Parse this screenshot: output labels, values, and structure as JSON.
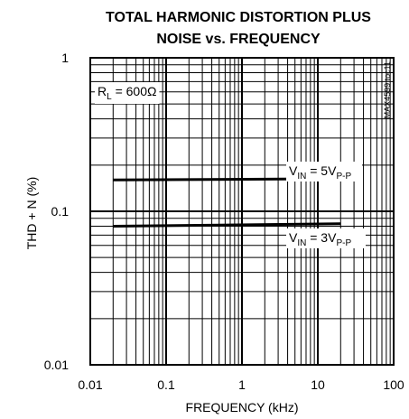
{
  "chart_data": {
    "type": "line",
    "title": "TOTAL HARMONIC DISTORTION PLUS",
    "subtitle": "NOISE vs. FREQUENCY",
    "xlabel": "FREQUENCY (kHz)",
    "ylabel": "THD + N (%)",
    "x_scale": "log",
    "y_scale": "log",
    "xlim": [
      0.01,
      100
    ],
    "ylim": [
      0.01,
      1
    ],
    "grid": true,
    "x_ticks": [
      {
        "value": 0.01,
        "label": "0.01"
      },
      {
        "value": 0.1,
        "label": "0.1"
      },
      {
        "value": 1,
        "label": "1"
      },
      {
        "value": 10,
        "label": "10"
      },
      {
        "value": 100,
        "label": "100"
      }
    ],
    "y_ticks": [
      {
        "value": 0.01,
        "label": "0.01"
      },
      {
        "value": 0.1,
        "label": "0.1"
      },
      {
        "value": 1,
        "label": "1"
      }
    ],
    "series": [
      {
        "label_main": "V",
        "label_sub": "IN",
        "label_mid": " = 5V",
        "label_sub2": "P-P",
        "x": [
          0.02,
          20
        ],
        "y": [
          0.16,
          0.163
        ]
      },
      {
        "label_main": "V",
        "label_sub": "IN",
        "label_mid": " = 3V",
        "label_sub2": "P-P",
        "x": [
          0.02,
          20
        ],
        "y": [
          0.08,
          0.083
        ]
      }
    ],
    "annotations": {
      "load": {
        "main": "R",
        "sub": "L",
        "rest": " = 600Ω"
      },
      "part_tag": "MAX4599 toc11"
    }
  }
}
